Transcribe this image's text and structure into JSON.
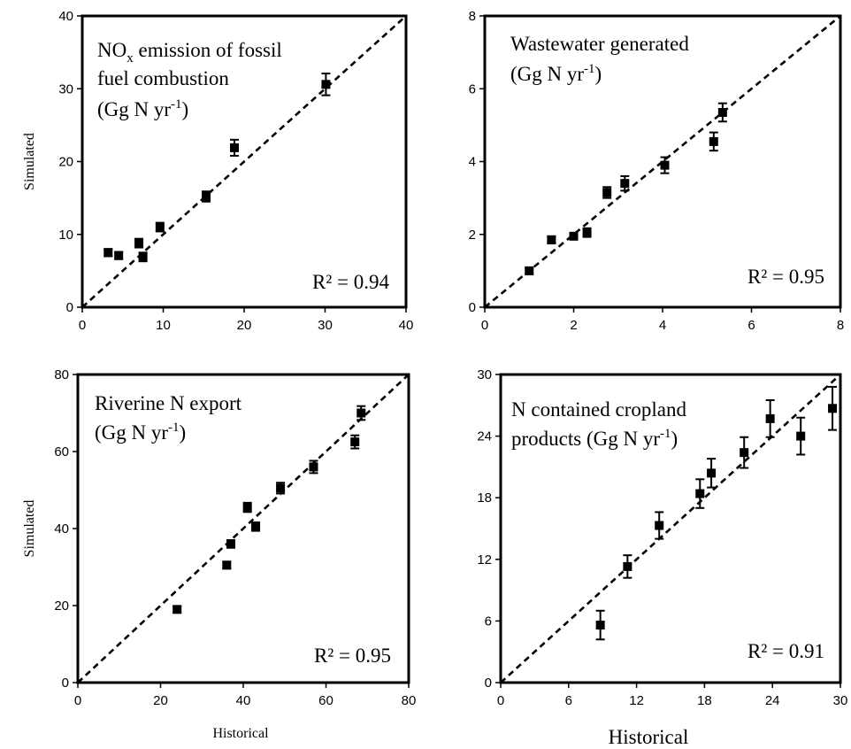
{
  "chart_data": [
    {
      "type": "scatter",
      "title_lines": [
        "NO",
        "x",
        " emission of fossil",
        "fuel combustion",
        "(Gg N yr",
        "-1",
        ")"
      ],
      "ylabel": "Simulated",
      "xlabel": "",
      "r2_label": "R² = 0.94",
      "xlim": [
        0,
        40
      ],
      "ylim": [
        0,
        40
      ],
      "xticks": [
        "0",
        "10",
        "20",
        "30",
        "40"
      ],
      "yticks": [
        "0",
        "10",
        "20",
        "30",
        "40"
      ],
      "points": [
        {
          "x": 3.2,
          "y": 7.5,
          "err": 0.5
        },
        {
          "x": 4.5,
          "y": 7.1,
          "err": 0.5
        },
        {
          "x": 7.0,
          "y": 8.8,
          "err": 0.6
        },
        {
          "x": 7.5,
          "y": 6.9,
          "err": 0.6
        },
        {
          "x": 9.6,
          "y": 11.0,
          "err": 0.6
        },
        {
          "x": 15.3,
          "y": 15.2,
          "err": 0.7
        },
        {
          "x": 18.8,
          "y": 21.9,
          "err": 1.1
        },
        {
          "x": 30.1,
          "y": 30.6,
          "err": 1.5
        }
      ]
    },
    {
      "type": "scatter",
      "title_lines": [
        "Wastewater generated",
        "(Gg N yr",
        "-1",
        ")"
      ],
      "ylabel": "",
      "xlabel": "",
      "r2_label": "R² = 0.95",
      "xlim": [
        0,
        8
      ],
      "ylim": [
        0,
        8
      ],
      "xticks": [
        "0",
        "2",
        "4",
        "6",
        "8"
      ],
      "yticks": [
        "0",
        "2",
        "4",
        "6",
        "8"
      ],
      "points": [
        {
          "x": 1.0,
          "y": 1.0,
          "err": 0.08
        },
        {
          "x": 1.5,
          "y": 1.85,
          "err": 0.1
        },
        {
          "x": 2.0,
          "y": 1.95,
          "err": 0.08
        },
        {
          "x": 2.3,
          "y": 2.05,
          "err": 0.12
        },
        {
          "x": 2.75,
          "y": 3.15,
          "err": 0.15
        },
        {
          "x": 3.15,
          "y": 3.4,
          "err": 0.2
        },
        {
          "x": 4.05,
          "y": 3.9,
          "err": 0.22
        },
        {
          "x": 5.15,
          "y": 4.55,
          "err": 0.25
        },
        {
          "x": 5.35,
          "y": 5.35,
          "err": 0.25
        }
      ]
    },
    {
      "type": "scatter",
      "title_lines": [
        "Riverine N export",
        "(Gg N yr",
        "-1",
        ")"
      ],
      "ylabel": "Simulated",
      "xlabel": "Historical",
      "r2_label": "R² = 0.95",
      "xlim": [
        0,
        80
      ],
      "ylim": [
        0,
        80
      ],
      "xticks": [
        "0",
        "20",
        "40",
        "60",
        "80"
      ],
      "yticks": [
        "0",
        "20",
        "40",
        "60",
        "80"
      ],
      "points": [
        {
          "x": 24,
          "y": 19,
          "err": 0.8
        },
        {
          "x": 36,
          "y": 30.5,
          "err": 0.9
        },
        {
          "x": 37,
          "y": 36,
          "err": 1.0
        },
        {
          "x": 41,
          "y": 45.5,
          "err": 1.2
        },
        {
          "x": 43,
          "y": 40.5,
          "err": 1.1
        },
        {
          "x": 49,
          "y": 50.5,
          "err": 1.4
        },
        {
          "x": 57,
          "y": 56,
          "err": 1.6
        },
        {
          "x": 67,
          "y": 62.5,
          "err": 1.7
        },
        {
          "x": 68.5,
          "y": 70,
          "err": 1.8
        }
      ]
    },
    {
      "type": "scatter",
      "title_lines": [
        "N contained cropland",
        "products  (Gg N yr",
        "-1",
        ")"
      ],
      "ylabel": "",
      "xlabel": "Historical",
      "r2_label": "R² = 0.91",
      "xlim": [
        0,
        30
      ],
      "ylim": [
        0,
        30
      ],
      "xticks": [
        "0",
        "6",
        "12",
        "18",
        "24",
        "30"
      ],
      "yticks": [
        "0",
        "6",
        "12",
        "18",
        "24",
        "30"
      ],
      "points": [
        {
          "x": 8.8,
          "y": 5.6,
          "err": 1.4
        },
        {
          "x": 11.2,
          "y": 11.3,
          "err": 1.1
        },
        {
          "x": 14.0,
          "y": 15.3,
          "err": 1.3
        },
        {
          "x": 17.6,
          "y": 18.4,
          "err": 1.4
        },
        {
          "x": 18.6,
          "y": 20.4,
          "err": 1.4
        },
        {
          "x": 21.5,
          "y": 22.4,
          "err": 1.5
        },
        {
          "x": 23.8,
          "y": 25.7,
          "err": 1.8
        },
        {
          "x": 26.5,
          "y": 24.0,
          "err": 1.8
        },
        {
          "x": 29.3,
          "y": 26.7,
          "err": 2.1
        }
      ]
    }
  ]
}
